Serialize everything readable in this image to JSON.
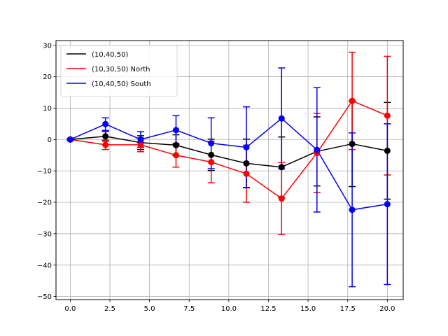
{
  "chart_data": {
    "type": "line",
    "title": "",
    "xlabel": "",
    "ylabel": "",
    "xlim": [
      -0.9,
      21.0
    ],
    "ylim": [
      -51,
      31.5
    ],
    "xticks": [
      0.0,
      2.5,
      5.0,
      7.5,
      10.0,
      12.5,
      15.0,
      17.5,
      20.0
    ],
    "xtick_labels": [
      "0.0",
      "2.5",
      "5.0",
      "7.5",
      "10.0",
      "12.5",
      "15.0",
      "17.5",
      "20.0"
    ],
    "yticks": [
      -50,
      -40,
      -30,
      -20,
      -10,
      0,
      10,
      20,
      30
    ],
    "ytick_labels": [
      "−50",
      "−40",
      "−30",
      "−20",
      "−10",
      "0",
      "10",
      "20",
      "30"
    ],
    "grid": true,
    "legend_position": "upper-left",
    "series": [
      {
        "name": "(10,40,50)",
        "color": "#000000",
        "x": [
          0.0,
          2.22,
          4.44,
          6.67,
          8.89,
          11.11,
          13.33,
          15.56,
          17.78,
          20.0
        ],
        "y": [
          0.0,
          1.0,
          -1.0,
          -1.8,
          -4.9,
          -7.6,
          -8.8,
          -3.8,
          -1.4,
          -3.6
        ],
        "yerr": [
          0.3,
          1.5,
          2.2,
          3.3,
          5.0,
          7.7,
          9.6,
          11.0,
          13.6,
          15.4
        ]
      },
      {
        "name": "(10,30,50) North",
        "color": "#ff0000",
        "x": [
          0.0,
          2.22,
          4.44,
          6.67,
          8.89,
          11.11,
          13.33,
          15.56,
          17.78,
          20.0
        ],
        "y": [
          0.0,
          -1.7,
          -1.7,
          -5.0,
          -7.2,
          -10.9,
          -18.8,
          -4.3,
          12.3,
          7.6
        ],
        "yerr": [
          0.3,
          1.5,
          2.2,
          3.8,
          6.6,
          9.1,
          11.5,
          12.6,
          15.5,
          18.9
        ]
      },
      {
        "name": "(10,40,50) South",
        "color": "#0000ff",
        "x": [
          0.0,
          2.22,
          4.44,
          6.67,
          8.89,
          11.11,
          13.33,
          15.56,
          17.78,
          20.0
        ],
        "y": [
          0.0,
          4.9,
          0.0,
          3.0,
          -1.2,
          -2.5,
          6.7,
          -3.3,
          -22.4,
          -20.6
        ],
        "yerr": [
          0.3,
          2.0,
          2.5,
          4.6,
          8.1,
          12.9,
          16.1,
          19.8,
          24.5,
          25.6
        ]
      }
    ]
  }
}
